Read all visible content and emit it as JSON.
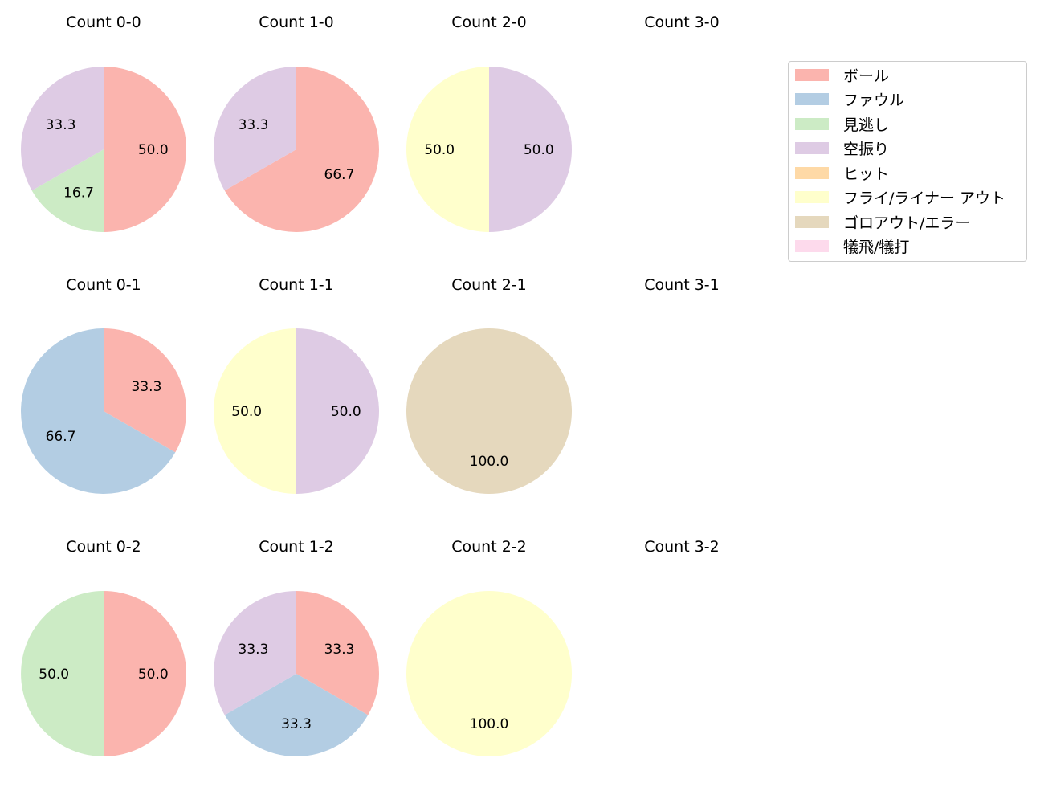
{
  "chart_data": {
    "type": "pie",
    "layout": {
      "rows": 3,
      "cols": 4,
      "start_angle": 90,
      "direction": "clockwise",
      "label_format": "%.1f"
    },
    "categories": [
      "ボール",
      "ファウル",
      "見逃し",
      "空振り",
      "ヒット",
      "フライ/ライナー アウト",
      "ゴロアウト/エラー",
      "犠飛/犠打"
    ],
    "colors": [
      "#fbb4ae",
      "#b3cde3",
      "#ccebc5",
      "#decbe4",
      "#fed9a6",
      "#ffffcc",
      "#e5d8bd",
      "#fddaec"
    ],
    "charts": [
      {
        "title": "Count 0-0",
        "values": [
          50.0,
          0,
          16.7,
          33.3,
          0,
          0,
          0,
          0
        ]
      },
      {
        "title": "Count 1-0",
        "values": [
          66.7,
          0,
          0,
          33.3,
          0,
          0,
          0,
          0
        ]
      },
      {
        "title": "Count 2-0",
        "values": [
          0,
          0,
          0,
          50.0,
          0,
          50.0,
          0,
          0
        ]
      },
      {
        "title": "Count 3-0",
        "values": []
      },
      {
        "title": "Count 0-1",
        "values": [
          33.3,
          66.7,
          0,
          0,
          0,
          0,
          0,
          0
        ]
      },
      {
        "title": "Count 1-1",
        "values": [
          0,
          0,
          0,
          50.0,
          0,
          50.0,
          0,
          0
        ]
      },
      {
        "title": "Count 2-1",
        "values": [
          0,
          0,
          0,
          0,
          0,
          0,
          100.0,
          0
        ]
      },
      {
        "title": "Count 3-1",
        "values": []
      },
      {
        "title": "Count 0-2",
        "values": [
          50.0,
          0,
          50.0,
          0,
          0,
          0,
          0,
          0
        ]
      },
      {
        "title": "Count 1-2",
        "values": [
          33.3,
          33.3,
          0,
          33.3,
          0,
          0,
          0,
          0
        ]
      },
      {
        "title": "Count 2-2",
        "values": [
          0,
          0,
          0,
          0,
          0,
          100.0,
          0,
          0
        ]
      },
      {
        "title": "Count 3-2",
        "values": []
      }
    ],
    "legend_position": "upper right"
  },
  "titles": [
    "Count 0-0",
    "Count 1-0",
    "Count 2-0",
    "Count 3-0",
    "Count 0-1",
    "Count 1-1",
    "Count 2-1",
    "Count 3-1",
    "Count 0-2",
    "Count 1-2",
    "Count 2-2",
    "Count 3-2"
  ],
  "legend": [
    {
      "label": "ボール",
      "color": "#fbb4ae"
    },
    {
      "label": "ファウル",
      "color": "#b3cde3"
    },
    {
      "label": "見逃し",
      "color": "#ccebc5"
    },
    {
      "label": "空振り",
      "color": "#decbe4"
    },
    {
      "label": "ヒット",
      "color": "#fed9a6"
    },
    {
      "label": "フライ/ライナー アウト",
      "color": "#ffffcc"
    },
    {
      "label": "ゴロアウト/エラー",
      "color": "#e5d8bd"
    },
    {
      "label": "犠飛/犠打",
      "color": "#fddaec"
    }
  ]
}
